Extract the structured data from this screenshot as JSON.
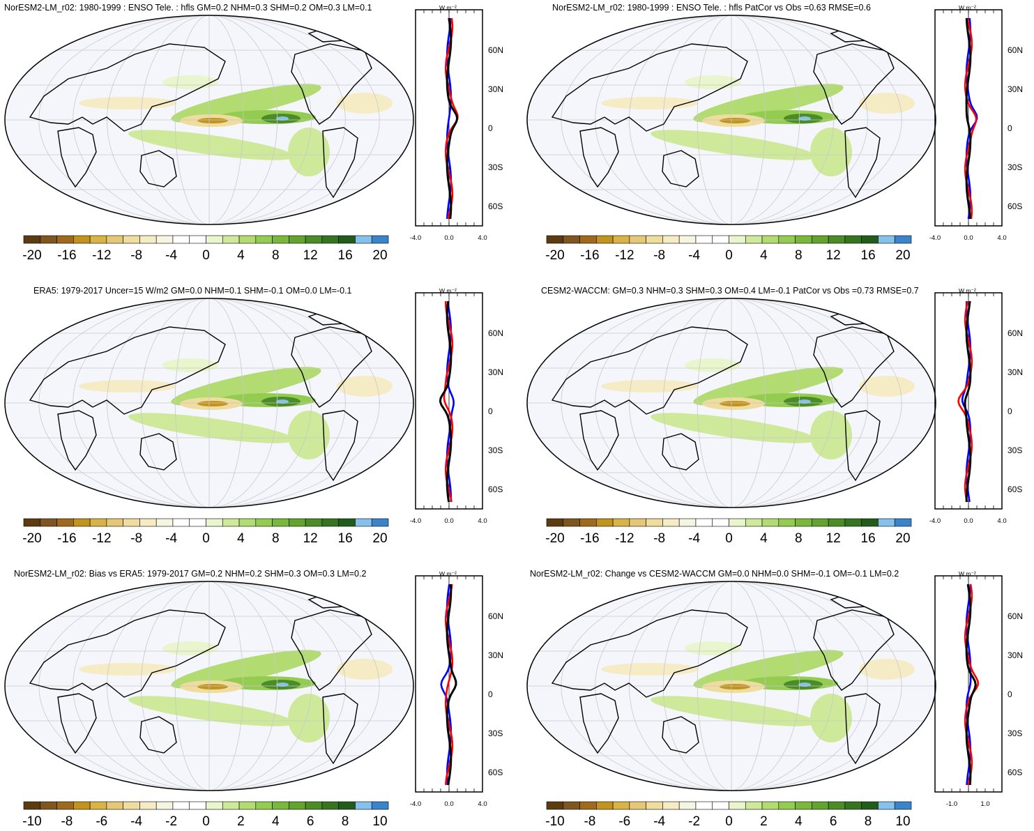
{
  "colors": {
    "brown_to_blue": [
      "#5c3b10",
      "#7f5520",
      "#a06a1e",
      "#c2941e",
      "#d9b346",
      "#e4c878",
      "#efdc9f",
      "#f5ebc4",
      "#f6f5e2",
      "#ffffff",
      "#ffffff",
      "#e9f5cc",
      "#cfe99a",
      "#b2dc72",
      "#93cc50",
      "#7ab83c",
      "#62a42e",
      "#4b8c26",
      "#367520",
      "#225c1a",
      "#86c1ec",
      "#3a84cc"
    ],
    "ocean": "#f5f6fc",
    "grid": "#c8c8c8",
    "obs_line": "#0000ff",
    "model_line": "#ff0000",
    "mean_line": "#000000"
  },
  "colorbars": {
    "wide": [
      "-20",
      "-16",
      "-12",
      "-8",
      "-4",
      "0",
      "4",
      "8",
      "12",
      "16",
      "20"
    ],
    "narrow": [
      "-10",
      "-8",
      "-6",
      "-4",
      "-2",
      "0",
      "2",
      "4",
      "6",
      "8",
      "10"
    ]
  },
  "profile_axis": {
    "units": "W m⁻²",
    "lat_labels": [
      "60N",
      "30N",
      "0",
      "30S",
      "60S"
    ],
    "x_labels_wide": [
      "-4.0",
      "0.0",
      "4.0"
    ],
    "x_labels_narrow": [
      "-1.0",
      "1.0"
    ]
  },
  "panels": [
    {
      "id": "p1",
      "title": "NorESM2-LM_r02: 1980-1999 : ENSO Tele. : hfls GM=0.2 NHM=0.3 SHM=0.2 OM=0.3 LM=0.1",
      "colorbar": "wide",
      "xaxis": "wide"
    },
    {
      "id": "p2",
      "title": "NorESM2-LM_r02: 1980-1999 : ENSO Tele. : hfls PatCor vs Obs =0.63 RMSE=0.6",
      "colorbar": "wide",
      "xaxis": "wide"
    },
    {
      "id": "p3",
      "title": "ERA5: 1979-2017 Uncer=15 W/m2 GM=0.0 NHM=0.1 SHM=-0.1 OM=0.0 LM=-0.1",
      "colorbar": "wide",
      "xaxis": "wide"
    },
    {
      "id": "p4",
      "title": "CESM2-WACCM: GM=0.3 NHM=0.3 SHM=0.3 OM=0.4 LM=-0.1 PatCor vs Obs =0.73 RMSE=0.7",
      "colorbar": "wide",
      "xaxis": "wide"
    },
    {
      "id": "p5",
      "title": "NorESM2-LM_r02: Bias vs ERA5: 1979-2017 GM=0.2 NHM=0.2 SHM=0.3 OM=0.3 LM=0.2",
      "colorbar": "narrow",
      "xaxis": "wide"
    },
    {
      "id": "p6",
      "title": "NorESM2-LM_r02: Change vs CESM2-WACCM GM=0.0 NHM=0.0 SHM=-0.1 OM=-0.1 LM=0.2",
      "colorbar": "narrow",
      "xaxis": "narrow"
    }
  ]
}
